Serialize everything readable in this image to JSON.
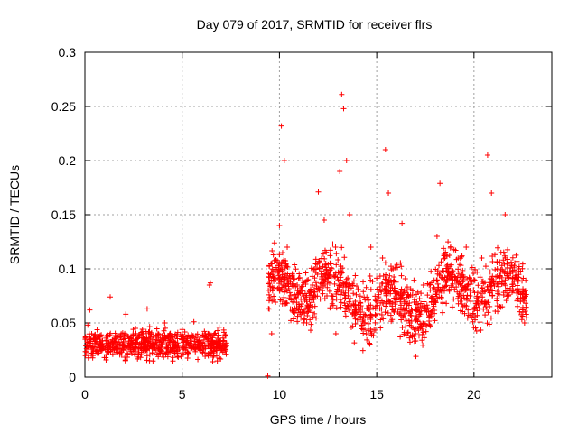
{
  "chart_data": {
    "type": "scatter",
    "title": "Day 079 of 2017, SRMTID for receiver flrs",
    "xlabel": "GPS time / hours",
    "ylabel": "SRMTID / TECUs",
    "xlim": [
      0,
      24
    ],
    "ylim": [
      0,
      0.3
    ],
    "grid": true,
    "legend": "none",
    "marker": "plus",
    "color": "#ff0000",
    "x_ticks": [
      {
        "value": 0,
        "label": "0"
      },
      {
        "value": 5,
        "label": "5"
      },
      {
        "value": 10,
        "label": "10"
      },
      {
        "value": 15,
        "label": "15"
      },
      {
        "value": 20,
        "label": "20"
      }
    ],
    "y_ticks": [
      {
        "value": 0,
        "label": "0"
      },
      {
        "value": 0.05,
        "label": "0.05"
      },
      {
        "value": 0.1,
        "label": "0.1"
      },
      {
        "value": 0.15,
        "label": "0.15"
      },
      {
        "value": 0.2,
        "label": "0.2"
      },
      {
        "value": 0.25,
        "label": "0.25"
      },
      {
        "value": 0.3,
        "label": "0.3"
      }
    ],
    "series": [
      {
        "name": "SRMTID",
        "segments": [
          {
            "x_start": 0.0,
            "x_end": 7.3,
            "baseline": 0.03,
            "spread": 0.012
          },
          {
            "x_start": 9.4,
            "x_end": 22.7,
            "baseline": 0.075,
            "spread": 0.025
          }
        ],
        "points": [
          {
            "x": 0.05,
            "y": 0.035
          },
          {
            "x": 0.15,
            "y": 0.048
          },
          {
            "x": 0.25,
            "y": 0.062
          },
          {
            "x": 0.35,
            "y": 0.04
          },
          {
            "x": 0.5,
            "y": 0.028
          },
          {
            "x": 0.65,
            "y": 0.022
          },
          {
            "x": 0.8,
            "y": 0.03
          },
          {
            "x": 1.0,
            "y": 0.018
          },
          {
            "x": 1.3,
            "y": 0.074
          },
          {
            "x": 1.5,
            "y": 0.032
          },
          {
            "x": 1.8,
            "y": 0.026
          },
          {
            "x": 2.1,
            "y": 0.058
          },
          {
            "x": 2.3,
            "y": 0.036
          },
          {
            "x": 2.6,
            "y": 0.045
          },
          {
            "x": 2.9,
            "y": 0.03
          },
          {
            "x": 3.2,
            "y": 0.063
          },
          {
            "x": 3.5,
            "y": 0.027
          },
          {
            "x": 3.8,
            "y": 0.038
          },
          {
            "x": 4.1,
            "y": 0.05
          },
          {
            "x": 4.4,
            "y": 0.032
          },
          {
            "x": 4.7,
            "y": 0.024
          },
          {
            "x": 5.0,
            "y": 0.044
          },
          {
            "x": 5.3,
            "y": 0.029
          },
          {
            "x": 5.6,
            "y": 0.051
          },
          {
            "x": 5.9,
            "y": 0.034
          },
          {
            "x": 6.2,
            "y": 0.04
          },
          {
            "x": 6.4,
            "y": 0.085
          },
          {
            "x": 6.45,
            "y": 0.087
          },
          {
            "x": 6.6,
            "y": 0.031
          },
          {
            "x": 6.9,
            "y": 0.046
          },
          {
            "x": 7.1,
            "y": 0.036
          },
          {
            "x": 7.25,
            "y": 0.028
          },
          {
            "x": 9.4,
            "y": 0.001
          },
          {
            "x": 9.6,
            "y": 0.04
          },
          {
            "x": 9.8,
            "y": 0.09
          },
          {
            "x": 10.0,
            "y": 0.14
          },
          {
            "x": 10.1,
            "y": 0.232
          },
          {
            "x": 10.25,
            "y": 0.2
          },
          {
            "x": 10.4,
            "y": 0.12
          },
          {
            "x": 10.7,
            "y": 0.06
          },
          {
            "x": 11.0,
            "y": 0.078
          },
          {
            "x": 11.4,
            "y": 0.05
          },
          {
            "x": 11.8,
            "y": 0.1
          },
          {
            "x": 12.0,
            "y": 0.171
          },
          {
            "x": 12.3,
            "y": 0.145
          },
          {
            "x": 12.6,
            "y": 0.064
          },
          {
            "x": 12.9,
            "y": 0.04
          },
          {
            "x": 13.1,
            "y": 0.19
          },
          {
            "x": 13.2,
            "y": 0.261
          },
          {
            "x": 13.3,
            "y": 0.248
          },
          {
            "x": 13.45,
            "y": 0.2
          },
          {
            "x": 13.6,
            "y": 0.15
          },
          {
            "x": 13.9,
            "y": 0.07
          },
          {
            "x": 14.3,
            "y": 0.088
          },
          {
            "x": 14.7,
            "y": 0.12
          },
          {
            "x": 15.0,
            "y": 0.07
          },
          {
            "x": 15.3,
            "y": 0.11
          },
          {
            "x": 15.45,
            "y": 0.21
          },
          {
            "x": 15.6,
            "y": 0.17
          },
          {
            "x": 15.9,
            "y": 0.06
          },
          {
            "x": 16.3,
            "y": 0.142
          },
          {
            "x": 16.7,
            "y": 0.05
          },
          {
            "x": 17.0,
            "y": 0.04
          },
          {
            "x": 17.4,
            "y": 0.085
          },
          {
            "x": 17.8,
            "y": 0.06
          },
          {
            "x": 18.1,
            "y": 0.13
          },
          {
            "x": 18.25,
            "y": 0.179
          },
          {
            "x": 18.5,
            "y": 0.11
          },
          {
            "x": 18.9,
            "y": 0.09
          },
          {
            "x": 19.3,
            "y": 0.07
          },
          {
            "x": 19.6,
            "y": 0.12
          },
          {
            "x": 20.0,
            "y": 0.09
          },
          {
            "x": 20.4,
            "y": 0.11
          },
          {
            "x": 20.7,
            "y": 0.205
          },
          {
            "x": 20.9,
            "y": 0.17
          },
          {
            "x": 21.2,
            "y": 0.1
          },
          {
            "x": 21.6,
            "y": 0.15
          },
          {
            "x": 22.0,
            "y": 0.08
          },
          {
            "x": 22.3,
            "y": 0.1
          },
          {
            "x": 22.6,
            "y": 0.05
          }
        ]
      }
    ]
  }
}
